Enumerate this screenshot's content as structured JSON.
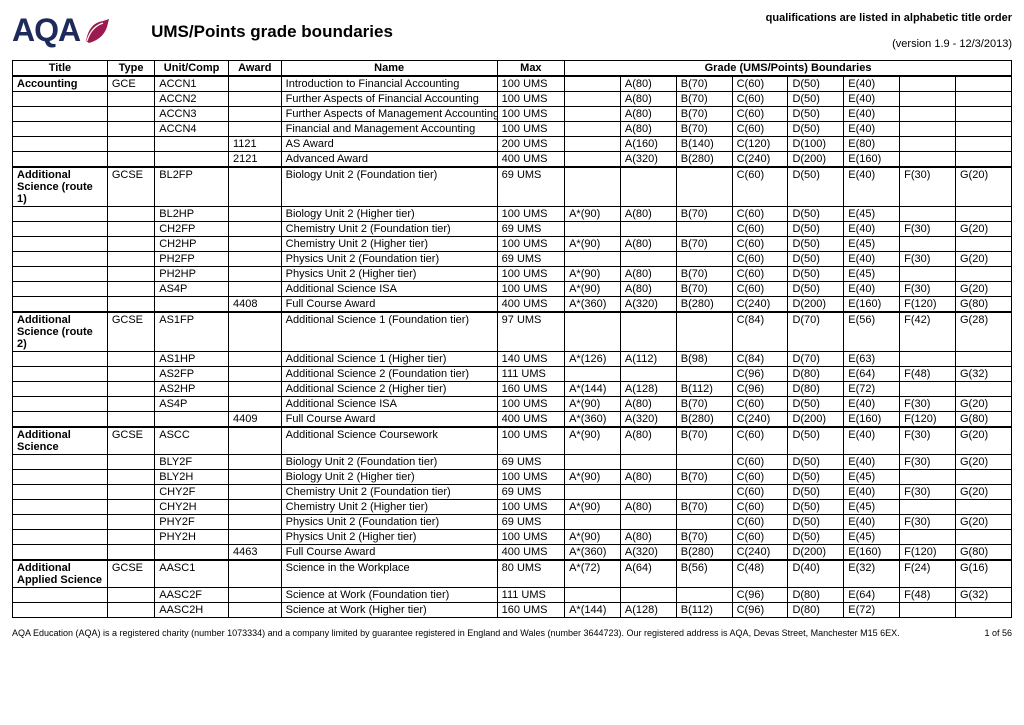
{
  "logo_text": "AQA",
  "page_title": "UMS/Points grade boundaries",
  "alpha_note": "qualifications are listed in alphabetic title order",
  "version_line": "(version 1.9  -  12/3/2013)",
  "columns": {
    "title": "Title",
    "type": "Type",
    "unit": "Unit/Comp",
    "award": "Award",
    "name": "Name",
    "max": "Max",
    "boundaries": "Grade (UMS/Points) Boundaries"
  },
  "footer_text": "AQA Education (AQA) is a registered charity (number 1073334) and a company limited by guarantee registered in England and Wales (number 3644723). Our registered address is AQA, Devas Street, Manchester M15 6EX.",
  "page_num": "1 of 56",
  "sections": [
    {
      "title": "Accounting",
      "type": "GCE",
      "rows": [
        {
          "unit": "ACCN1",
          "award": "",
          "name": "Introduction to Financial Accounting",
          "max": "100 UMS",
          "g": [
            "",
            "A(80)",
            "B(70)",
            "C(60)",
            "D(50)",
            "E(40)",
            "",
            ""
          ]
        },
        {
          "unit": "ACCN2",
          "award": "",
          "name": "Further Aspects of Financial Accounting",
          "max": "100 UMS",
          "g": [
            "",
            "A(80)",
            "B(70)",
            "C(60)",
            "D(50)",
            "E(40)",
            "",
            ""
          ]
        },
        {
          "unit": "ACCN3",
          "award": "",
          "name": "Further Aspects of Management Accounting",
          "max": "100 UMS",
          "g": [
            "",
            "A(80)",
            "B(70)",
            "C(60)",
            "D(50)",
            "E(40)",
            "",
            ""
          ]
        },
        {
          "unit": "ACCN4",
          "award": "",
          "name": "Financial and Management Accounting",
          "max": "100 UMS",
          "g": [
            "",
            "A(80)",
            "B(70)",
            "C(60)",
            "D(50)",
            "E(40)",
            "",
            ""
          ]
        },
        {
          "unit": "",
          "award": "1121",
          "name": "AS Award",
          "max": "200 UMS",
          "g": [
            "",
            "A(160)",
            "B(140)",
            "C(120)",
            "D(100)",
            "E(80)",
            "",
            ""
          ]
        },
        {
          "unit": "",
          "award": "2121",
          "name": "Advanced Award",
          "max": "400 UMS",
          "g": [
            "",
            "A(320)",
            "B(280)",
            "C(240)",
            "D(200)",
            "E(160)",
            "",
            ""
          ]
        }
      ]
    },
    {
      "title": "Additional Science (route 1)",
      "type": "GCSE",
      "rows": [
        {
          "unit": "BL2FP",
          "award": "",
          "name": "Biology Unit 2 (Foundation tier)",
          "max": "69 UMS",
          "g": [
            "",
            "",
            "",
            "C(60)",
            "D(50)",
            "E(40)",
            "F(30)",
            "G(20)"
          ]
        },
        {
          "unit": "BL2HP",
          "award": "",
          "name": "Biology Unit 2 (Higher tier)",
          "max": "100 UMS",
          "g": [
            "A*(90)",
            "A(80)",
            "B(70)",
            "C(60)",
            "D(50)",
            "E(45)",
            "",
            ""
          ]
        },
        {
          "unit": "CH2FP",
          "award": "",
          "name": "Chemistry Unit 2 (Foundation tier)",
          "max": "69 UMS",
          "g": [
            "",
            "",
            "",
            "C(60)",
            "D(50)",
            "E(40)",
            "F(30)",
            "G(20)"
          ]
        },
        {
          "unit": "CH2HP",
          "award": "",
          "name": "Chemistry Unit 2 (Higher tier)",
          "max": "100 UMS",
          "g": [
            "A*(90)",
            "A(80)",
            "B(70)",
            "C(60)",
            "D(50)",
            "E(45)",
            "",
            ""
          ]
        },
        {
          "unit": "PH2FP",
          "award": "",
          "name": "Physics Unit 2 (Foundation tier)",
          "max": "69 UMS",
          "g": [
            "",
            "",
            "",
            "C(60)",
            "D(50)",
            "E(40)",
            "F(30)",
            "G(20)"
          ]
        },
        {
          "unit": "PH2HP",
          "award": "",
          "name": "Physics Unit 2 (Higher tier)",
          "max": "100 UMS",
          "g": [
            "A*(90)",
            "A(80)",
            "B(70)",
            "C(60)",
            "D(50)",
            "E(45)",
            "",
            ""
          ]
        },
        {
          "unit": "AS4P",
          "award": "",
          "name": "Additional Science ISA",
          "max": "100 UMS",
          "g": [
            "A*(90)",
            "A(80)",
            "B(70)",
            "C(60)",
            "D(50)",
            "E(40)",
            "F(30)",
            "G(20)"
          ]
        },
        {
          "unit": "",
          "award": "4408",
          "name": "Full Course Award",
          "max": "400 UMS",
          "g": [
            "A*(360)",
            "A(320)",
            "B(280)",
            "C(240)",
            "D(200)",
            "E(160)",
            "F(120)",
            "G(80)"
          ]
        }
      ]
    },
    {
      "title": "Additional Science (route 2)",
      "type": "GCSE",
      "rows": [
        {
          "unit": "AS1FP",
          "award": "",
          "name": "Additional Science 1 (Foundation tier)",
          "max": "97 UMS",
          "g": [
            "",
            "",
            "",
            "C(84)",
            "D(70)",
            "E(56)",
            "F(42)",
            "G(28)"
          ]
        },
        {
          "unit": "AS1HP",
          "award": "",
          "name": "Additional Science 1 (Higher tier)",
          "max": "140 UMS",
          "g": [
            "A*(126)",
            "A(112)",
            "B(98)",
            "C(84)",
            "D(70)",
            "E(63)",
            "",
            ""
          ]
        },
        {
          "unit": "AS2FP",
          "award": "",
          "name": "Additional Science 2 (Foundation tier)",
          "max": "111 UMS",
          "g": [
            "",
            "",
            "",
            "C(96)",
            "D(80)",
            "E(64)",
            "F(48)",
            "G(32)"
          ]
        },
        {
          "unit": "AS2HP",
          "award": "",
          "name": "Additional Science 2 (Higher tier)",
          "max": "160 UMS",
          "g": [
            "A*(144)",
            "A(128)",
            "B(112)",
            "C(96)",
            "D(80)",
            "E(72)",
            "",
            ""
          ]
        },
        {
          "unit": "AS4P",
          "award": "",
          "name": "Additional Science ISA",
          "max": "100 UMS",
          "g": [
            "A*(90)",
            "A(80)",
            "B(70)",
            "C(60)",
            "D(50)",
            "E(40)",
            "F(30)",
            "G(20)"
          ]
        },
        {
          "unit": "",
          "award": "4409",
          "name": "Full Course Award",
          "max": "400 UMS",
          "g": [
            "A*(360)",
            "A(320)",
            "B(280)",
            "C(240)",
            "D(200)",
            "E(160)",
            "F(120)",
            "G(80)"
          ]
        }
      ]
    },
    {
      "title": "Additional Science",
      "type": "GCSE",
      "rows": [
        {
          "unit": "ASCC",
          "award": "",
          "name": "Additional Science Coursework",
          "max": "100 UMS",
          "g": [
            "A*(90)",
            "A(80)",
            "B(70)",
            "C(60)",
            "D(50)",
            "E(40)",
            "F(30)",
            "G(20)"
          ]
        },
        {
          "unit": "BLY2F",
          "award": "",
          "name": "Biology Unit 2 (Foundation tier)",
          "max": "69 UMS",
          "g": [
            "",
            "",
            "",
            "C(60)",
            "D(50)",
            "E(40)",
            "F(30)",
            "G(20)"
          ]
        },
        {
          "unit": "BLY2H",
          "award": "",
          "name": "Biology Unit 2 (Higher tier)",
          "max": "100 UMS",
          "g": [
            "A*(90)",
            "A(80)",
            "B(70)",
            "C(60)",
            "D(50)",
            "E(45)",
            "",
            ""
          ]
        },
        {
          "unit": "CHY2F",
          "award": "",
          "name": "Chemistry Unit 2 (Foundation tier)",
          "max": "69 UMS",
          "g": [
            "",
            "",
            "",
            "C(60)",
            "D(50)",
            "E(40)",
            "F(30)",
            "G(20)"
          ]
        },
        {
          "unit": "CHY2H",
          "award": "",
          "name": "Chemistry Unit 2 (Higher tier)",
          "max": "100 UMS",
          "g": [
            "A*(90)",
            "A(80)",
            "B(70)",
            "C(60)",
            "D(50)",
            "E(45)",
            "",
            ""
          ]
        },
        {
          "unit": "PHY2F",
          "award": "",
          "name": "Physics Unit 2 (Foundation tier)",
          "max": "69 UMS",
          "g": [
            "",
            "",
            "",
            "C(60)",
            "D(50)",
            "E(40)",
            "F(30)",
            "G(20)"
          ]
        },
        {
          "unit": "PHY2H",
          "award": "",
          "name": "Physics Unit 2 (Higher tier)",
          "max": "100 UMS",
          "g": [
            "A*(90)",
            "A(80)",
            "B(70)",
            "C(60)",
            "D(50)",
            "E(45)",
            "",
            ""
          ]
        },
        {
          "unit": "",
          "award": "4463",
          "name": "Full Course Award",
          "max": "400 UMS",
          "g": [
            "A*(360)",
            "A(320)",
            "B(280)",
            "C(240)",
            "D(200)",
            "E(160)",
            "F(120)",
            "G(80)"
          ]
        }
      ]
    },
    {
      "title": "Additional Applied Science",
      "type": "GCSE",
      "rows": [
        {
          "unit": "AASC1",
          "award": "",
          "name": "Science in the Workplace",
          "max": "80 UMS",
          "g": [
            "A*(72)",
            "A(64)",
            "B(56)",
            "C(48)",
            "D(40)",
            "E(32)",
            "F(24)",
            "G(16)"
          ]
        },
        {
          "unit": "AASC2F",
          "award": "",
          "name": "Science at Work (Foundation tier)",
          "max": "111 UMS",
          "g": [
            "",
            "",
            "",
            "C(96)",
            "D(80)",
            "E(64)",
            "F(48)",
            "G(32)"
          ]
        },
        {
          "unit": "AASC2H",
          "award": "",
          "name": "Science at Work (Higher tier)",
          "max": "160 UMS",
          "g": [
            "A*(144)",
            "A(128)",
            "B(112)",
            "C(96)",
            "D(80)",
            "E(72)",
            "",
            ""
          ]
        }
      ]
    }
  ]
}
